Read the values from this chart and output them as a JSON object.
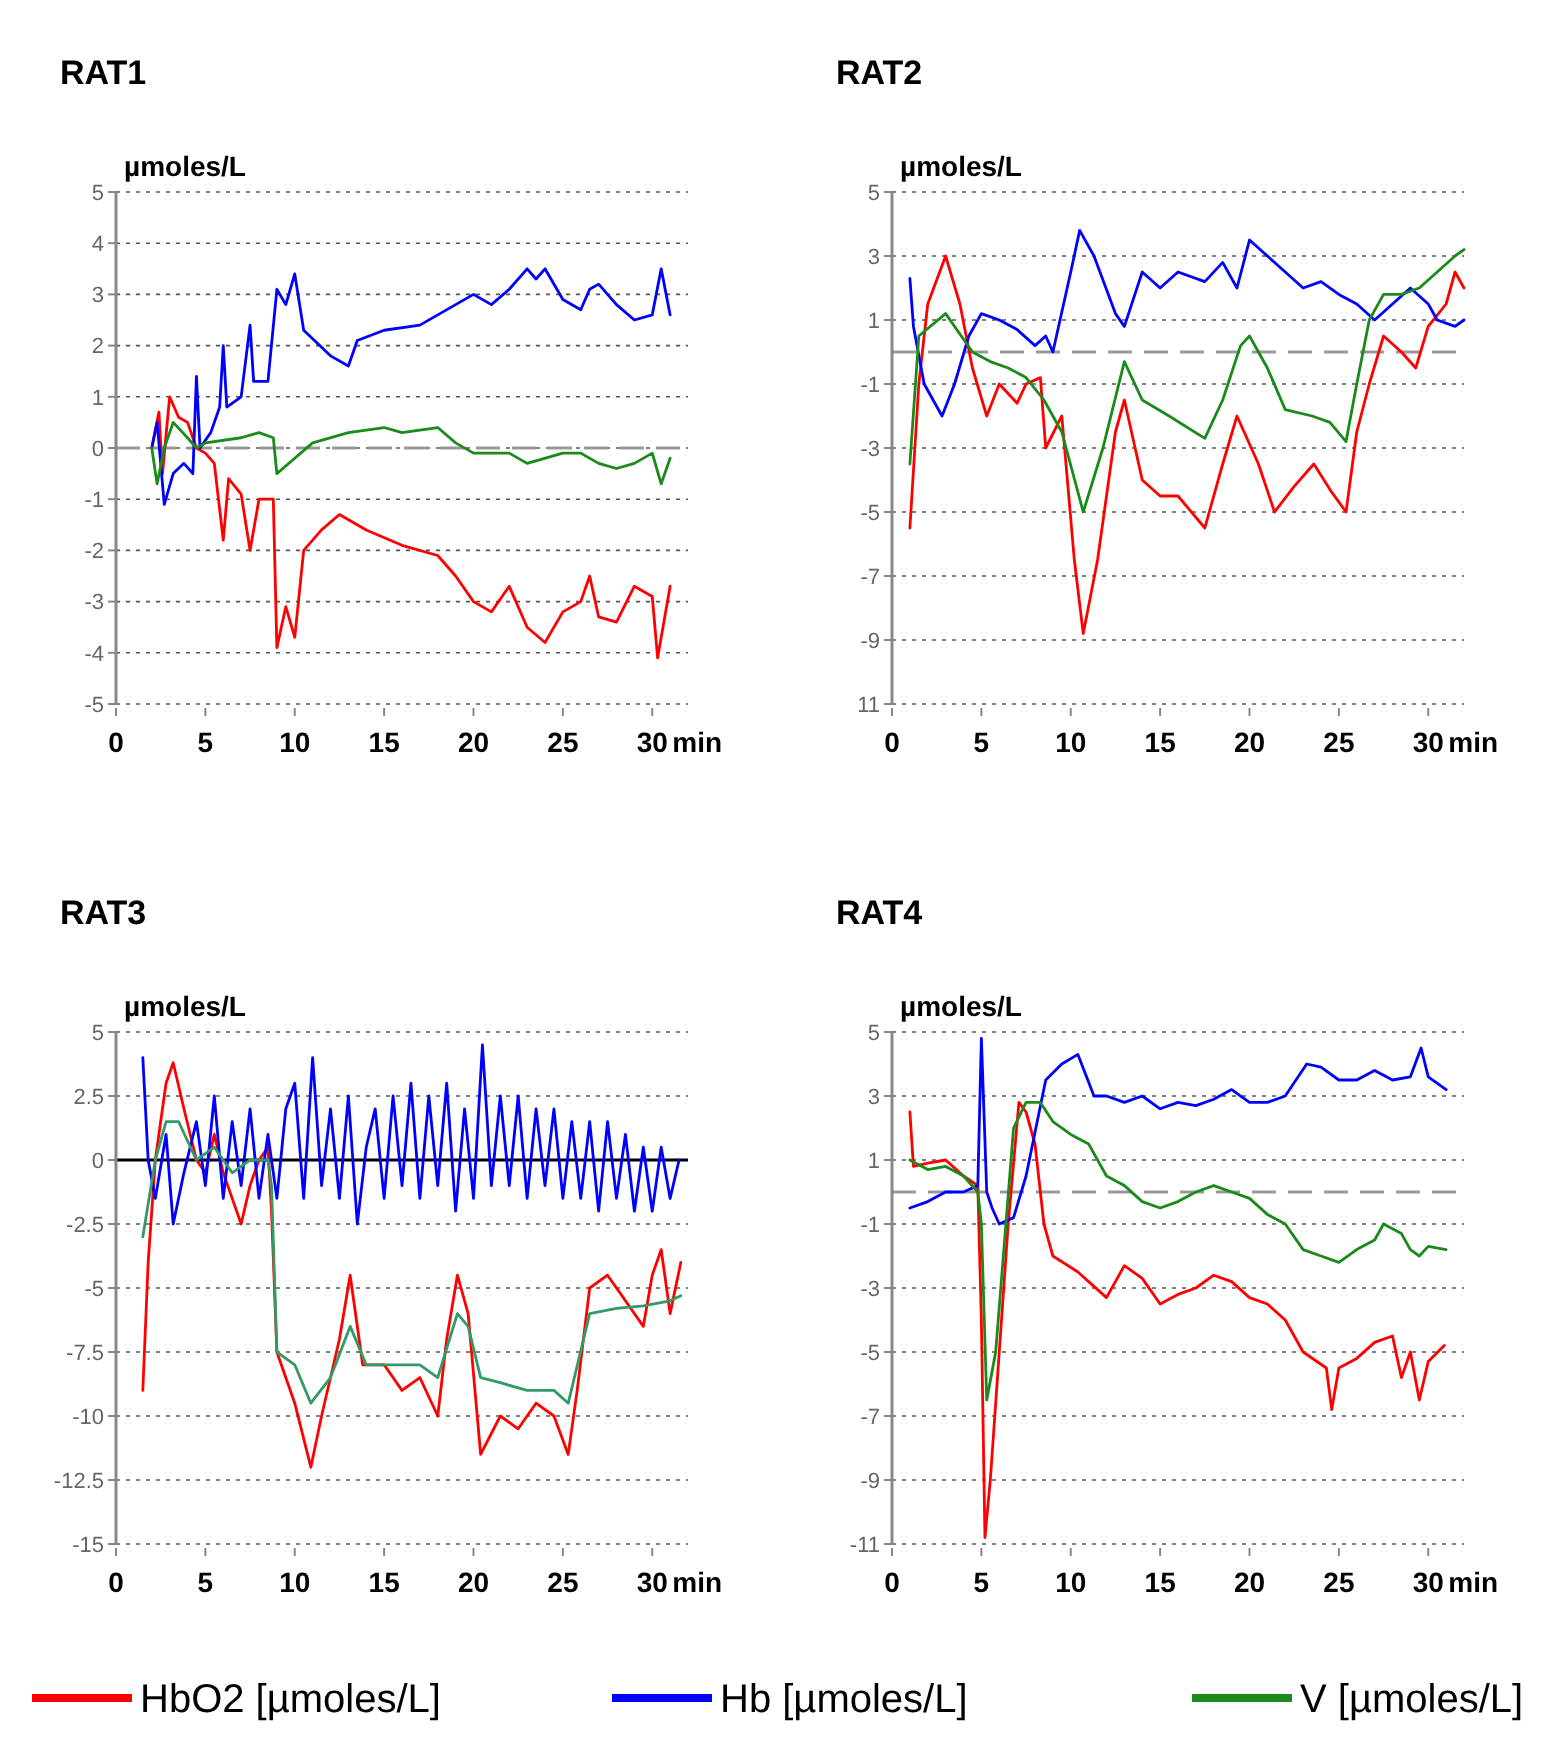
{
  "chart_data": [
    {
      "type": "line",
      "title": "RAT1",
      "ylabel": "µmoles/L",
      "xlabel": "min",
      "xlim": [
        0,
        32
      ],
      "xticks": [
        0,
        5,
        10,
        15,
        20,
        25,
        30
      ],
      "ylim": [
        -5,
        5
      ],
      "yticks": [
        -5,
        -4,
        -3,
        -2,
        -1,
        0,
        1,
        2,
        3,
        4,
        5
      ],
      "grid": "y",
      "legend": "bottom",
      "ref_lines": [
        {
          "axis": "y",
          "value": 0,
          "color": "#999999",
          "line_style": "dashed"
        }
      ],
      "series": [
        {
          "name": "HbO2 [µmoles/L]",
          "color": "#ff0000",
          "x": [
            2,
            2.4,
            2.6,
            3,
            3.5,
            4,
            4.5,
            5,
            5.5,
            6,
            6.3,
            7,
            7.5,
            8,
            8.8,
            9,
            9.5,
            10,
            10.5,
            11.5,
            12.5,
            14,
            16,
            18,
            19,
            20,
            21,
            22,
            23,
            24,
            25,
            26,
            26.5,
            27,
            28,
            29,
            30,
            30.3,
            31
          ],
          "values": [
            0,
            0.7,
            -0.5,
            1.0,
            0.6,
            0.5,
            0,
            -0.1,
            -0.3,
            -1.8,
            -0.6,
            -0.9,
            -2.0,
            -1.0,
            -1.0,
            -3.9,
            -3.1,
            -3.7,
            -2.0,
            -1.6,
            -1.3,
            -1.6,
            -1.9,
            -2.1,
            -2.5,
            -3.0,
            -3.2,
            -2.7,
            -3.5,
            -3.8,
            -3.2,
            -3.0,
            -2.5,
            -3.3,
            -3.4,
            -2.7,
            -2.9,
            -4.1,
            -2.7
          ]
        },
        {
          "name": "Hb [µmoles/L]",
          "color": "#0000ff",
          "x": [
            2,
            2.3,
            2.7,
            3.2,
            3.8,
            4.3,
            4.5,
            4.7,
            5.3,
            5.8,
            6,
            6.2,
            7,
            7.5,
            7.7,
            8.5,
            9,
            9.5,
            10,
            10.5,
            12,
            13,
            13.5,
            15,
            17,
            18,
            20,
            21,
            22,
            23,
            23.5,
            24,
            25,
            26,
            26.5,
            27,
            28,
            29,
            30,
            30.5,
            31
          ],
          "values": [
            0,
            0.5,
            -1.1,
            -0.5,
            -0.3,
            -0.5,
            1.4,
            0,
            0.3,
            0.8,
            2.0,
            0.8,
            1.0,
            2.4,
            1.3,
            1.3,
            3.1,
            2.8,
            3.4,
            2.3,
            1.8,
            1.6,
            2.1,
            2.3,
            2.4,
            2.6,
            3.0,
            2.8,
            3.1,
            3.5,
            3.3,
            3.5,
            2.9,
            2.7,
            3.1,
            3.2,
            2.8,
            2.5,
            2.6,
            3.5,
            2.6
          ]
        },
        {
          "name": "V [µmoles/L]",
          "color": "#1a8a1a",
          "x": [
            2,
            2.3,
            2.7,
            3.2,
            4,
            4.5,
            5,
            7,
            8,
            8.8,
            9,
            10,
            11,
            13,
            15,
            16,
            18,
            19,
            20,
            22,
            23,
            25,
            26,
            27,
            28,
            29,
            30,
            30.5,
            31
          ],
          "values": [
            0,
            -0.7,
            0,
            0.5,
            0.2,
            0,
            0.1,
            0.2,
            0.3,
            0.2,
            -0.5,
            -0.2,
            0.1,
            0.3,
            0.4,
            0.3,
            0.4,
            0.1,
            -0.1,
            -0.1,
            -0.3,
            -0.1,
            -0.1,
            -0.3,
            -0.4,
            -0.3,
            -0.1,
            -0.7,
            -0.2
          ]
        }
      ]
    },
    {
      "type": "line",
      "title": "RAT2",
      "ylabel": "µmoles/L",
      "xlabel": "min",
      "xlim": [
        0,
        32
      ],
      "xticks": [
        0,
        5,
        10,
        15,
        20,
        25,
        30
      ],
      "ylim": [
        -11,
        5
      ],
      "yticks": [
        {
          "value": -11,
          "label": "11"
        },
        -9,
        -7,
        -5,
        -3,
        -1,
        1,
        3,
        5
      ],
      "grid": "y",
      "ref_lines": [
        {
          "axis": "y",
          "value": 0,
          "color": "#999999",
          "line_style": "dashed"
        }
      ],
      "series": [
        {
          "color": "#ff0000",
          "x": [
            1,
            1.5,
            2,
            3,
            3.8,
            4.5,
            5.3,
            6,
            7,
            7.5,
            8.3,
            8.6,
            9.5,
            10.2,
            10.7,
            11.5,
            12.5,
            13,
            14,
            15,
            16,
            17.5,
            18.5,
            19.3,
            20.5,
            21.4,
            22.5,
            23.6,
            24.5,
            25.4,
            26,
            26.7,
            27.5,
            28.5,
            29.3,
            30,
            31,
            31.5,
            32
          ],
          "values": [
            -5.5,
            -1,
            1.5,
            3.0,
            1.5,
            -0.5,
            -2.0,
            -1.0,
            -1.6,
            -1.0,
            -0.8,
            -3.0,
            -2.0,
            -6.5,
            -8.8,
            -6.5,
            -2.5,
            -1.5,
            -4.0,
            -4.5,
            -4.5,
            -5.5,
            -3.5,
            -2.0,
            -3.5,
            -5.0,
            -4.2,
            -3.5,
            -4.3,
            -5.0,
            -2.5,
            -1.0,
            0.5,
            0,
            -0.5,
            0.8,
            1.5,
            2.5,
            2.0
          ]
        },
        {
          "color": "#0000ff",
          "x": [
            1,
            1.2,
            1.8,
            2.8,
            3.5,
            4.3,
            5,
            6,
            7,
            8,
            8.6,
            9,
            10,
            10.5,
            11.3,
            12.5,
            13,
            14,
            15,
            16,
            17.5,
            18.5,
            19.3,
            20,
            21,
            22,
            23,
            24,
            25,
            26,
            27,
            28,
            29,
            30,
            30.5,
            31.5,
            32
          ],
          "values": [
            2.3,
            0.8,
            -1.0,
            -2.0,
            -1.0,
            0.5,
            1.2,
            1.0,
            0.7,
            0.2,
            0.5,
            0.0,
            2.5,
            3.8,
            3.0,
            1.2,
            0.8,
            2.5,
            2.0,
            2.5,
            2.2,
            2.8,
            2.0,
            3.5,
            3.0,
            2.5,
            2.0,
            2.2,
            1.8,
            1.5,
            1.0,
            1.5,
            2.0,
            1.5,
            1.0,
            0.8,
            1.0
          ]
        },
        {
          "color": "#1a8a1a",
          "x": [
            1,
            1.5,
            3,
            4.5,
            5.5,
            6.5,
            7.5,
            8.5,
            9.5,
            10.7,
            11.8,
            13,
            14,
            15.5,
            17.5,
            18.5,
            19.5,
            20,
            21,
            22,
            23.5,
            24.5,
            25.4,
            26,
            26.7,
            27.5,
            28.5,
            29.5,
            30.5,
            31.5,
            32
          ],
          "values": [
            -3.5,
            0.5,
            1.2,
            0,
            -0.3,
            -0.5,
            -0.8,
            -1.5,
            -2.5,
            -5.0,
            -3.0,
            -0.3,
            -1.5,
            -2.0,
            -2.7,
            -1.5,
            0.2,
            0.5,
            -0.5,
            -1.8,
            -2.0,
            -2.2,
            -2.8,
            -1.0,
            1.0,
            1.8,
            1.8,
            2.0,
            2.5,
            3.0,
            3.2
          ]
        }
      ]
    },
    {
      "type": "line",
      "title": "RAT3",
      "ylabel": "µmoles/L",
      "xlabel": "min",
      "xlim": [
        0,
        32
      ],
      "xticks": [
        0,
        5,
        10,
        15,
        20,
        25,
        30
      ],
      "ylim": [
        -15,
        5
      ],
      "yticks": [
        -15,
        -12.5,
        -10,
        -7.5,
        -5,
        -2.5,
        0,
        2.5,
        5
      ],
      "grid": "y",
      "ref_lines": [
        {
          "axis": "y",
          "value": 0,
          "color": "#000000",
          "line_style": "solid"
        }
      ],
      "series": [
        {
          "color": "#ff0000",
          "x": [
            1.5,
            1.8,
            2.2,
            2.8,
            3.2,
            3.8,
            4.5,
            5,
            5.5,
            6,
            6.5,
            7,
            7.5,
            8,
            8.5,
            8.7,
            9,
            10,
            10.9,
            11.5,
            12.5,
            13.1,
            13.8,
            15,
            16,
            17,
            18,
            18.5,
            19.1,
            19.7,
            20.4,
            21.5,
            22.5,
            23.5,
            24.5,
            25.3,
            25.8,
            26.5,
            27.5,
            28.5,
            29.5,
            30,
            30.5,
            31,
            31.6
          ],
          "values": [
            -9,
            -4,
            0,
            3.0,
            3.8,
            2.0,
            0,
            -0.5,
            1.0,
            -0.5,
            -1.5,
            -2.5,
            -1.0,
            0,
            0.5,
            -2,
            -7.5,
            -9.5,
            -12,
            -10,
            -7,
            -4.5,
            -8,
            -8,
            -9,
            -8.5,
            -10,
            -7,
            -4.5,
            -6,
            -11.5,
            -10,
            -10.5,
            -9.5,
            -10,
            -11.5,
            -9,
            -5,
            -4.5,
            -5.5,
            -6.5,
            -4.5,
            -3.5,
            -6,
            -4
          ]
        },
        {
          "color": "#0000ff",
          "x": [
            1.5,
            1.8,
            2.2,
            2.8,
            3.2,
            3.8,
            4.5,
            5,
            5.5,
            6,
            6.5,
            7,
            7.5,
            8,
            8.5,
            9,
            9.5,
            10,
            10.5,
            11,
            11.5,
            12,
            12.5,
            13,
            13.5,
            14,
            14.5,
            15,
            15.5,
            16,
            16.5,
            17,
            17.5,
            18,
            18.5,
            19,
            19.5,
            20,
            20.5,
            21,
            21.5,
            22,
            22.5,
            23,
            23.5,
            24,
            24.5,
            25,
            25.5,
            26,
            26.5,
            27,
            27.5,
            28,
            28.5,
            29,
            29.5,
            30,
            30.5,
            31,
            31.5
          ],
          "values": [
            4.0,
            0,
            -1.5,
            1.0,
            -2.5,
            -0.5,
            1.5,
            -1.0,
            2.5,
            -1.5,
            1.5,
            -1.0,
            2.0,
            -1.5,
            1.0,
            -1.5,
            2.0,
            3.0,
            -1.5,
            4.0,
            -1.0,
            2.0,
            -1.5,
            2.5,
            -2.5,
            0.5,
            2.0,
            -1.5,
            2.5,
            -1.0,
            3.0,
            -1.5,
            2.5,
            -1.0,
            3.0,
            -2.0,
            2.0,
            -1.5,
            4.5,
            -1.0,
            2.5,
            -1.0,
            2.5,
            -1.5,
            2.0,
            -1.0,
            2.0,
            -1.5,
            1.5,
            -1.5,
            1.5,
            -2.0,
            1.5,
            -1.5,
            1.0,
            -2.0,
            0.5,
            -2.0,
            0.5,
            -1.5,
            0
          ]
        },
        {
          "color": "#339966",
          "x": [
            1.5,
            2.2,
            2.8,
            3.5,
            4.5,
            5.5,
            6.5,
            7.5,
            8.5,
            8.7,
            9,
            10,
            10.9,
            12,
            13.1,
            14,
            16,
            17,
            18,
            19.1,
            19.7,
            20.4,
            21.5,
            23,
            24.5,
            25.3,
            26.5,
            28,
            29.5,
            31,
            31.6
          ],
          "values": [
            -3,
            0,
            1.5,
            1.5,
            0,
            0.5,
            -0.5,
            0,
            0,
            -1,
            -7.5,
            -8,
            -9.5,
            -8.5,
            -6.5,
            -8,
            -8,
            -8,
            -8.5,
            -6,
            -6.5,
            -8.5,
            -8.7,
            -9,
            -9,
            -9.5,
            -6,
            -5.8,
            -5.7,
            -5.5,
            -5.3
          ]
        }
      ]
    },
    {
      "type": "line",
      "title": "RAT4",
      "ylabel": "µmoles/L",
      "xlabel": "min",
      "xlim": [
        0,
        32
      ],
      "xticks": [
        0,
        5,
        10,
        15,
        20,
        25,
        30
      ],
      "ylim": [
        -11,
        5
      ],
      "yticks": [
        -11,
        -9,
        -7,
        -5,
        -3,
        -1,
        1,
        3,
        5
      ],
      "grid": "y",
      "ref_lines": [
        {
          "axis": "y",
          "value": 0,
          "color": "#999999",
          "line_style": "dashed"
        }
      ],
      "series": [
        {
          "color": "#ff0000",
          "x": [
            1,
            1.2,
            2,
            3,
            4,
            4.8,
            5,
            5.2,
            5.5,
            6,
            6.5,
            7.1,
            7.5,
            8,
            8.5,
            9,
            10.4,
            11,
            12,
            13,
            14,
            15,
            16,
            17,
            18,
            19,
            20,
            21,
            22,
            23,
            24.3,
            24.6,
            25,
            26,
            27,
            28,
            28.5,
            29,
            29.5,
            30,
            30.9
          ],
          "values": [
            2.5,
            0.8,
            0.9,
            1.0,
            0.5,
            0.2,
            -4,
            -10.8,
            -9,
            -5,
            -1,
            2.8,
            2.5,
            1.5,
            -1,
            -2,
            -2.5,
            -2.8,
            -3.3,
            -2.3,
            -2.7,
            -3.5,
            -3.2,
            -3.0,
            -2.6,
            -2.8,
            -3.3,
            -3.5,
            -4.0,
            -5.0,
            -5.5,
            -6.8,
            -5.5,
            -5.2,
            -4.7,
            -4.5,
            -5.8,
            -5.0,
            -6.5,
            -5.3,
            -4.8
          ]
        },
        {
          "color": "#0000ff",
          "x": [
            1,
            2,
            3,
            4,
            4.8,
            5,
            5.3,
            5.6,
            6,
            6.8,
            7.5,
            8.6,
            9.5,
            10.4,
            11.3,
            12,
            13,
            14,
            15,
            16,
            17,
            18,
            19,
            20,
            21,
            22,
            23.2,
            24,
            25,
            26,
            27,
            28,
            29,
            29.6,
            30,
            31
          ],
          "values": [
            -0.5,
            -0.3,
            0,
            0,
            0.2,
            4.8,
            0,
            -0.5,
            -1.0,
            -0.8,
            0.5,
            3.5,
            4.0,
            4.3,
            3.0,
            3.0,
            2.8,
            3.0,
            2.6,
            2.8,
            2.7,
            2.9,
            3.2,
            2.8,
            2.8,
            3.0,
            4.0,
            3.9,
            3.5,
            3.5,
            3.8,
            3.5,
            3.6,
            4.5,
            3.6,
            3.2
          ]
        },
        {
          "color": "#1a8a1a",
          "x": [
            1,
            2,
            3,
            4,
            4.8,
            5,
            5.3,
            5.8,
            6.3,
            6.8,
            7.5,
            8.3,
            9,
            10,
            11,
            12,
            13,
            14,
            15,
            16,
            17,
            18,
            19,
            20,
            21,
            22,
            23,
            24,
            25,
            26,
            27,
            27.5,
            28.5,
            29,
            29.5,
            30,
            31
          ],
          "values": [
            1.0,
            0.7,
            0.8,
            0.5,
            0,
            -1,
            -6.5,
            -5,
            -1.5,
            2.0,
            2.8,
            2.8,
            2.2,
            1.8,
            1.5,
            0.5,
            0.2,
            -0.3,
            -0.5,
            -0.3,
            0,
            0.2,
            0,
            -0.2,
            -0.7,
            -1.0,
            -1.8,
            -2.0,
            -2.2,
            -1.8,
            -1.5,
            -1.0,
            -1.3,
            -1.8,
            -2.0,
            -1.7,
            -1.8
          ]
        }
      ]
    }
  ]
}
